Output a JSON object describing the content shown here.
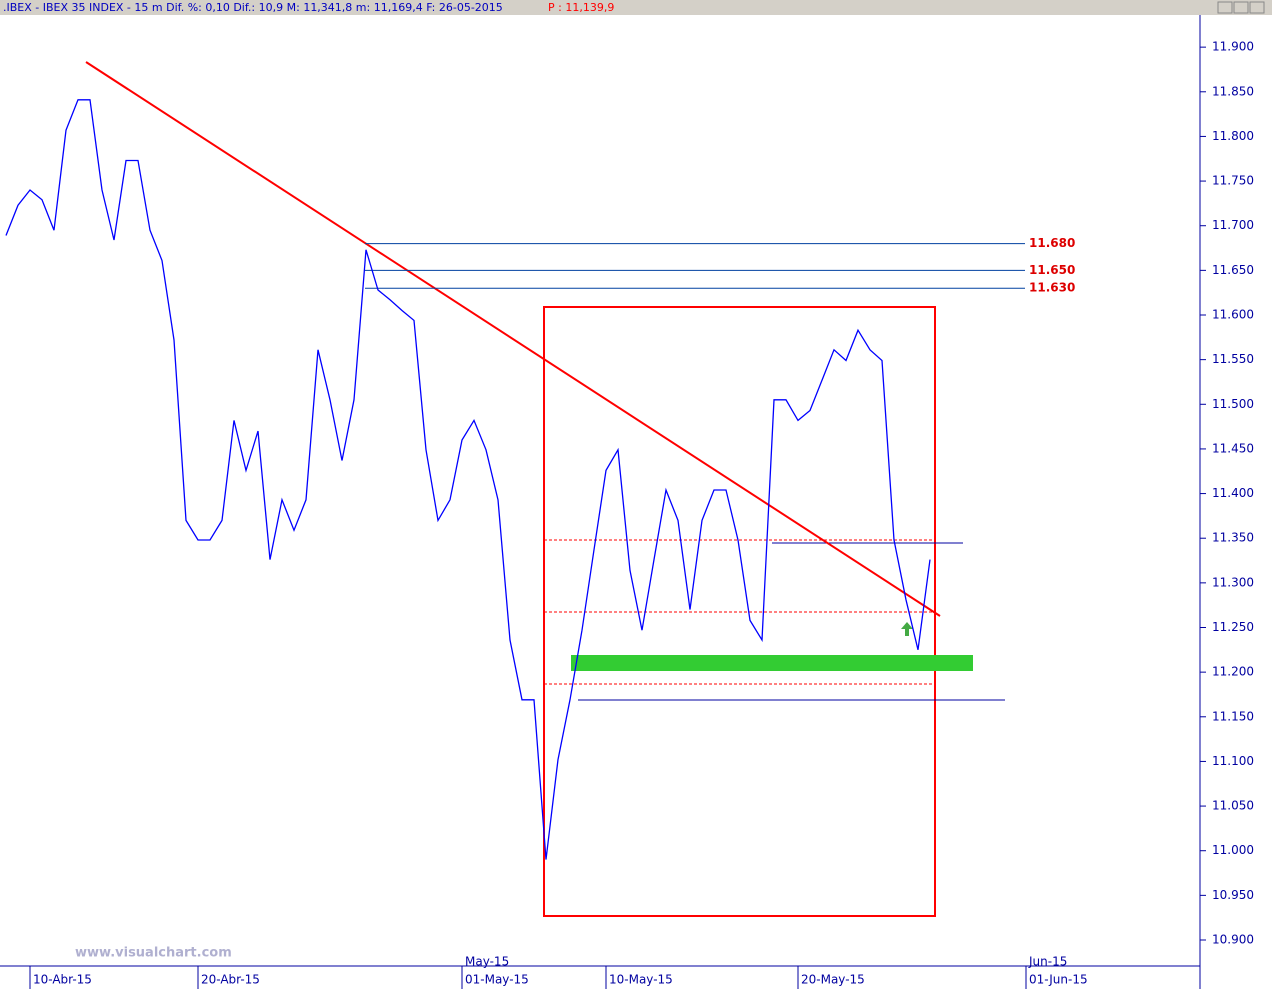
{
  "chart_data": {
    "type": "line",
    "title": ".IBEX - IBEX 35 INDEX -  15 m Dif. %: 0,10 Dif.: 10,9 M: 11,341,8 m: 11,169,4 F: 26-05-2015",
    "last_price": "P : 11,139,9",
    "watermark": "www.visualchart.com",
    "categories": [
      null,
      null,
      "10-Abr-15",
      null,
      null,
      null,
      null,
      null,
      null,
      null,
      null,
      null,
      null,
      null,
      null,
      null,
      "20-Abr-15",
      null,
      null,
      null,
      null,
      null,
      null,
      null,
      null,
      null,
      null,
      null,
      null,
      null,
      null,
      null,
      null,
      null,
      null,
      null,
      null,
      null,
      "01-May-15",
      null,
      null,
      null,
      null,
      null,
      null,
      null,
      null,
      null,
      null,
      null,
      "10-May-15",
      null,
      null,
      null,
      null,
      null,
      null,
      null,
      null,
      null,
      null,
      null,
      null,
      null,
      null,
      null,
      "20-May-15",
      null,
      null,
      null,
      null,
      null,
      null,
      null,
      null,
      null,
      null,
      null,
      null,
      null,
      null,
      null,
      null,
      null,
      null,
      "01-Jun-15",
      null,
      null,
      null,
      null,
      null,
      null,
      null,
      null,
      null,
      null,
      null,
      null,
      null,
      null
    ],
    "month_labels": [
      null,
      null,
      null,
      null,
      null,
      null,
      null,
      null,
      null,
      null,
      null,
      null,
      null,
      null,
      null,
      null,
      null,
      null,
      null,
      null,
      null,
      null,
      null,
      null,
      null,
      null,
      null,
      null,
      null,
      null,
      null,
      null,
      null,
      null,
      null,
      null,
      null,
      null,
      "May-15",
      null,
      null,
      null,
      null,
      null,
      null,
      null,
      null,
      null,
      null,
      null,
      null,
      null,
      null,
      null,
      null,
      null,
      null,
      null,
      null,
      null,
      null,
      null,
      null,
      null,
      null,
      null,
      null,
      null,
      null,
      null,
      null,
      null,
      null,
      null,
      null,
      null,
      null,
      null,
      null,
      null,
      null,
      null,
      null,
      null,
      null,
      "Jun-15",
      null,
      null,
      null,
      null,
      null,
      null,
      null,
      null,
      null,
      null,
      null,
      null,
      null,
      null
    ],
    "series": [
      {
        "color": "#0000ff",
        "values": [
          11689,
          11723,
          11740,
          11729,
          11695,
          11807,
          11841,
          11841,
          11740,
          11684,
          11773,
          11773,
          11695,
          11661,
          11572,
          11370,
          11348,
          11348,
          11370,
          11482,
          11426,
          11470,
          11326,
          11393,
          11359,
          11393,
          11561,
          11505,
          11437,
          11505,
          11673,
          11628,
          11617,
          11605,
          11594,
          11449,
          11370,
          11393,
          11460,
          11482,
          11449,
          11393,
          11236,
          11169,
          11169,
          10990,
          11102,
          11169,
          11247,
          11337,
          11426,
          11449,
          11314,
          11247,
          11326,
          11404,
          11370,
          11270,
          11370,
          11404,
          11404,
          11348,
          11258,
          11236,
          11505,
          11505,
          11482,
          11493,
          11527,
          11561,
          11549,
          11583,
          11561,
          11549,
          11348,
          11281,
          11225,
          11326,
          null,
          null,
          null,
          null,
          null,
          null,
          null,
          null,
          null,
          null,
          null,
          null,
          null,
          null,
          null,
          null,
          null,
          null,
          null,
          null,
          null,
          null
        ]
      }
    ],
    "levels": [
      {
        "value": 11680,
        "label": "11.680"
      },
      {
        "value": 11650,
        "label": "11.650"
      },
      {
        "value": 11630,
        "label": "11.630"
      }
    ],
    "ylim": [
      10872,
      11936
    ],
    "yticks": [
      {
        "value": 11900,
        "label": "11.900"
      },
      {
        "value": 11850,
        "label": "11.850"
      },
      {
        "value": 11800,
        "label": "11.800"
      },
      {
        "value": 11750,
        "label": "11.750"
      },
      {
        "value": 11700,
        "label": "11.700"
      },
      {
        "value": 11650,
        "label": "11.650"
      },
      {
        "value": 11600,
        "label": "11.600"
      },
      {
        "value": 11550,
        "label": "11.550"
      },
      {
        "value": 11500,
        "label": "11.500"
      },
      {
        "value": 11450,
        "label": "11.450"
      },
      {
        "value": 11400,
        "label": "11.400"
      },
      {
        "value": 11350,
        "label": "11.350"
      },
      {
        "value": 11300,
        "label": "11.300"
      },
      {
        "value": 11250,
        "label": "11.250"
      },
      {
        "value": 11200,
        "label": "11.200"
      },
      {
        "value": 11150,
        "label": "11.150"
      },
      {
        "value": 11100,
        "label": "11.100"
      },
      {
        "value": 11050,
        "label": "11.050"
      },
      {
        "value": 11000,
        "label": "11.000"
      },
      {
        "value": 10950,
        "label": "10.950"
      },
      {
        "value": 10900,
        "label": "10.900"
      }
    ]
  }
}
